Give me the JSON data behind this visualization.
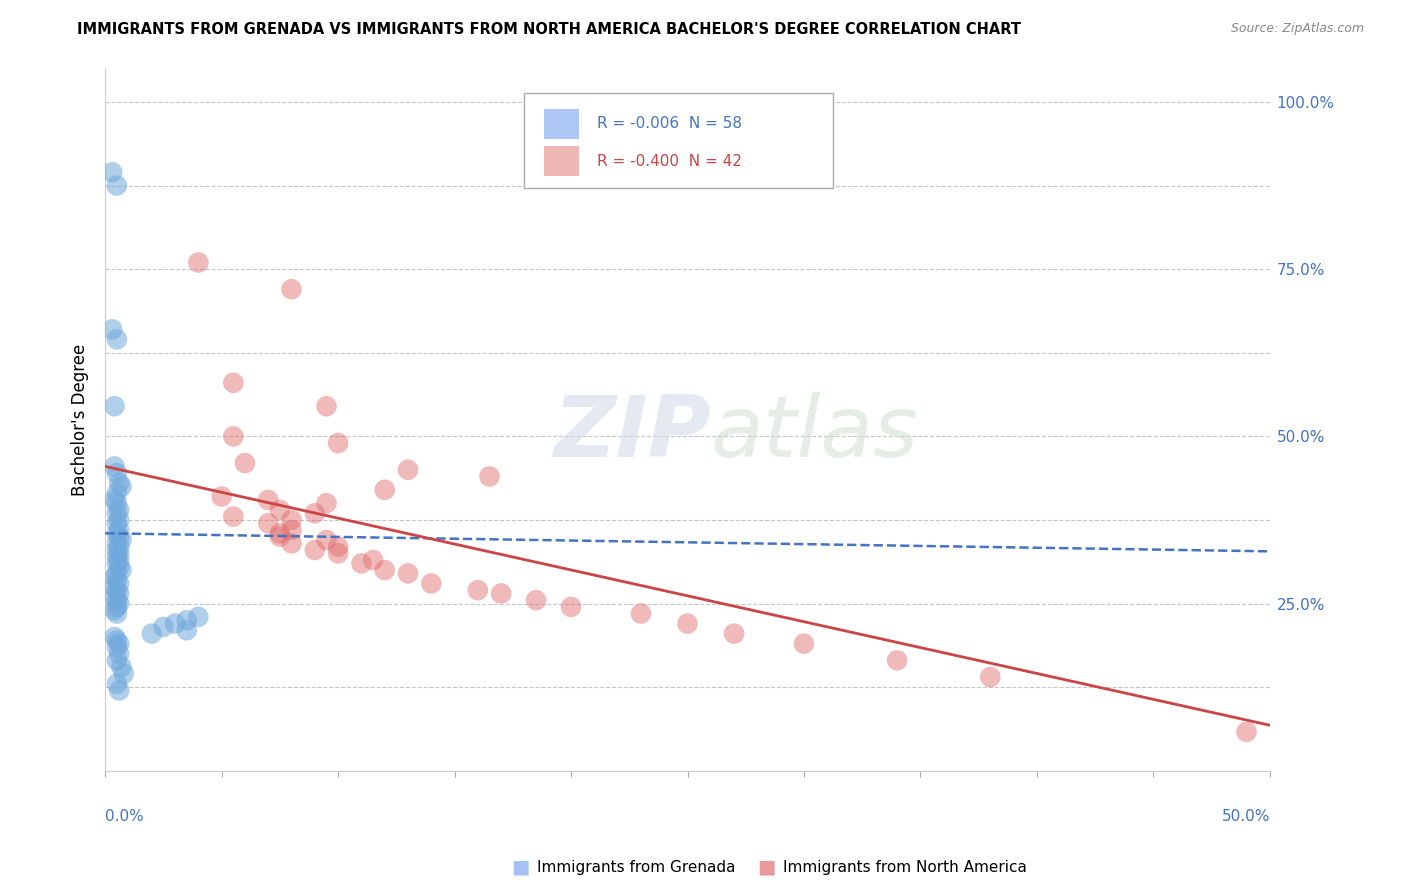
{
  "title": "IMMIGRANTS FROM GRENADA VS IMMIGRANTS FROM NORTH AMERICA BACHELOR'S DEGREE CORRELATION CHART",
  "source": "Source: ZipAtlas.com",
  "ylabel": "Bachelor's Degree",
  "legend1_label": "R = -0.006  N = 58",
  "legend2_label": "R = -0.400  N = 42",
  "legend_color1": "#a4c2f4",
  "legend_color2": "#ea9999",
  "blue_color": "#6fa8dc",
  "pink_color": "#e06666",
  "blue_line_color": "#4472c4",
  "pink_line_color": "#cc4444",
  "background_color": "#ffffff",
  "grid_color": "#c0c0c0",
  "title_color": "#000000",
  "right_axis_color": "#4472c4",
  "blue_scatter_x": [
    0.003,
    0.005,
    0.003,
    0.005,
    0.004,
    0.004,
    0.005,
    0.006,
    0.007,
    0.005,
    0.004,
    0.005,
    0.006,
    0.005,
    0.006,
    0.005,
    0.006,
    0.005,
    0.006,
    0.007,
    0.005,
    0.006,
    0.005,
    0.006,
    0.005,
    0.006,
    0.005,
    0.006,
    0.007,
    0.005,
    0.004,
    0.005,
    0.006,
    0.004,
    0.005,
    0.006,
    0.004,
    0.005,
    0.006,
    0.005,
    0.004,
    0.005,
    0.04,
    0.035,
    0.03,
    0.025,
    0.035,
    0.02,
    0.004,
    0.005,
    0.006,
    0.005,
    0.006,
    0.005,
    0.007,
    0.008,
    0.005,
    0.006
  ],
  "blue_scatter_y": [
    0.895,
    0.875,
    0.66,
    0.645,
    0.545,
    0.455,
    0.445,
    0.43,
    0.425,
    0.415,
    0.405,
    0.4,
    0.39,
    0.385,
    0.375,
    0.37,
    0.36,
    0.355,
    0.35,
    0.345,
    0.34,
    0.335,
    0.33,
    0.325,
    0.32,
    0.315,
    0.31,
    0.305,
    0.3,
    0.295,
    0.29,
    0.285,
    0.28,
    0.275,
    0.27,
    0.265,
    0.26,
    0.255,
    0.25,
    0.245,
    0.24,
    0.235,
    0.23,
    0.225,
    0.22,
    0.215,
    0.21,
    0.205,
    0.2,
    0.195,
    0.19,
    0.185,
    0.175,
    0.165,
    0.155,
    0.145,
    0.13,
    0.12
  ],
  "pink_scatter_x": [
    0.04,
    0.08,
    0.055,
    0.095,
    0.055,
    0.1,
    0.06,
    0.13,
    0.165,
    0.12,
    0.05,
    0.07,
    0.095,
    0.075,
    0.09,
    0.055,
    0.08,
    0.07,
    0.08,
    0.075,
    0.075,
    0.095,
    0.08,
    0.1,
    0.09,
    0.1,
    0.115,
    0.11,
    0.12,
    0.13,
    0.14,
    0.16,
    0.17,
    0.185,
    0.2,
    0.23,
    0.25,
    0.27,
    0.3,
    0.34,
    0.38,
    0.49
  ],
  "pink_scatter_y": [
    0.76,
    0.72,
    0.58,
    0.545,
    0.5,
    0.49,
    0.46,
    0.45,
    0.44,
    0.42,
    0.41,
    0.405,
    0.4,
    0.39,
    0.385,
    0.38,
    0.375,
    0.37,
    0.36,
    0.355,
    0.35,
    0.345,
    0.34,
    0.335,
    0.33,
    0.325,
    0.315,
    0.31,
    0.3,
    0.295,
    0.28,
    0.27,
    0.265,
    0.255,
    0.245,
    0.235,
    0.22,
    0.205,
    0.19,
    0.165,
    0.14,
    0.058
  ],
  "xlim": [
    0.0,
    0.5
  ],
  "ylim": [
    0.0,
    1.05
  ],
  "blue_trendline_x": [
    0.0,
    0.5
  ],
  "blue_trendline_y": [
    0.355,
    0.328
  ],
  "pink_trendline_x": [
    0.0,
    0.5
  ],
  "pink_trendline_y": [
    0.455,
    0.068
  ]
}
